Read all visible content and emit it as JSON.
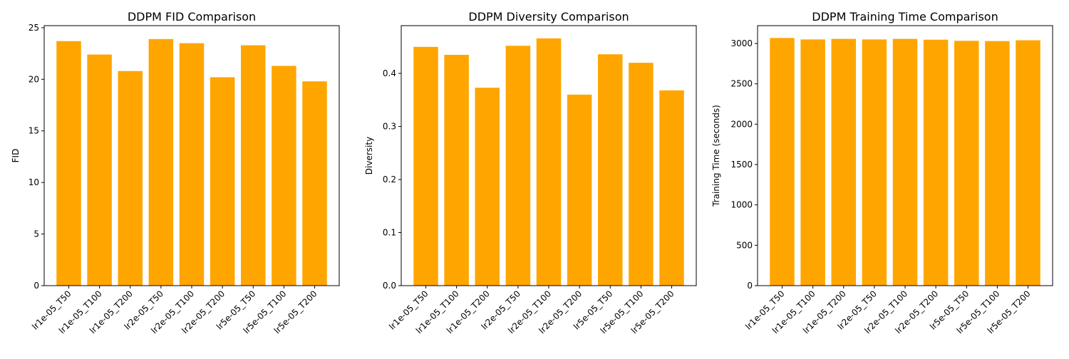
{
  "chart_data": [
    {
      "type": "bar",
      "title": "DDPM FID Comparison",
      "xlabel": "",
      "ylabel": "FID",
      "categories": [
        "lr1e-05_T50",
        "lr1e-05_T100",
        "lr1e-05_T200",
        "lr2e-05_T50",
        "lr2e-05_T100",
        "lr2e-05_T200",
        "lr5e-05_T50",
        "lr5e-05_T100",
        "lr5e-05_T200"
      ],
      "values": [
        23.7,
        22.4,
        20.8,
        23.9,
        23.5,
        20.2,
        23.3,
        21.3,
        19.8
      ],
      "ylim": [
        0,
        25.2
      ],
      "yticks": [
        0,
        5,
        10,
        15,
        20,
        25
      ],
      "ytick_labels": [
        "0",
        "5",
        "10",
        "15",
        "20",
        "25"
      ],
      "color": "#ffa500",
      "grid": false,
      "legend": "none"
    },
    {
      "type": "bar",
      "title": "DDPM Diversity Comparison",
      "xlabel": "",
      "ylabel": "Diversity",
      "categories": [
        "lr1e-05_T50",
        "lr1e-05_T100",
        "lr1e-05_T200",
        "lr2e-05_T50",
        "lr2e-05_T100",
        "lr2e-05_T200",
        "lr5e-05_T50",
        "lr5e-05_T100",
        "lr5e-05_T200"
      ],
      "values": [
        0.45,
        0.435,
        0.373,
        0.452,
        0.466,
        0.36,
        0.436,
        0.42,
        0.368
      ],
      "ylim": [
        0,
        0.49
      ],
      "yticks": [
        0,
        0.1,
        0.2,
        0.3,
        0.4
      ],
      "ytick_labels": [
        "0.0",
        "0.1",
        "0.2",
        "0.3",
        "0.4"
      ],
      "color": "#ffa500",
      "grid": false,
      "legend": "none"
    },
    {
      "type": "bar",
      "title": "DDPM Training Time Comparison",
      "xlabel": "",
      "ylabel": "Training Time (seconds)",
      "categories": [
        "lr1e-05_T50",
        "lr1e-05_T100",
        "lr1e-05_T200",
        "lr2e-05_T50",
        "lr2e-05_T100",
        "lr2e-05_T200",
        "lr5e-05_T50",
        "lr5e-05_T100",
        "lr5e-05_T200"
      ],
      "values": [
        3068,
        3050,
        3057,
        3050,
        3057,
        3047,
        3033,
        3030,
        3040
      ],
      "ylim": [
        0,
        3221
      ],
      "yticks": [
        0,
        500,
        1000,
        1500,
        2000,
        2500,
        3000
      ],
      "ytick_labels": [
        "0",
        "500",
        "1000",
        "1500",
        "2000",
        "2500",
        "3000"
      ],
      "color": "#ffa500",
      "grid": false,
      "legend": "none"
    }
  ]
}
